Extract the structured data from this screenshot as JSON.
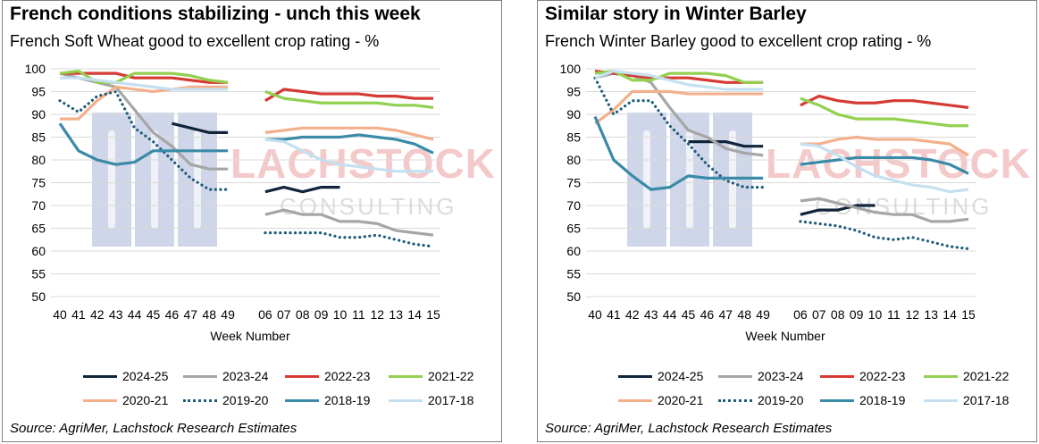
{
  "panels": [
    {
      "title": "French conditions stabilizing - unch this week",
      "subtitle": "French Soft Wheat good to excellent crop rating - %",
      "source": "Source: AgriMer, Lachstock Research Estimates",
      "watermark": {
        "text": "LACHSTOCK",
        "subtext": "CONSULTING"
      }
    },
    {
      "title": "Similar story in Winter Barley",
      "subtitle": "French Winter Barley good to excellent crop rating - %",
      "source": "Source: AgriMer, Lachstock Research Estimates",
      "watermark": {
        "text": "LACHSTOCK",
        "subtext": "CONSULTING"
      }
    }
  ],
  "colors": {
    "2024-25": "#10243a",
    "2023-24": "#a6a6a6",
    "2022-23": "#d63a34",
    "2021-22": "#92d050",
    "2020-21": "#f4b08c",
    "2019-20": "#1f5c7a",
    "2018-19": "#3a8aa8",
    "2017-18": "#c5e0f0"
  },
  "chart_data": [
    {
      "type": "line",
      "title": "French conditions stabilizing - unch this week",
      "subtitle": "French Soft Wheat good to excellent crop rating - %",
      "xlabel": "Week Number",
      "ylabel": "",
      "ylim": [
        50,
        100
      ],
      "yticks": [
        50,
        55,
        60,
        65,
        70,
        75,
        80,
        85,
        90,
        95,
        100
      ],
      "categories": [
        "40",
        "41",
        "42",
        "43",
        "44",
        "45",
        "46",
        "47",
        "48",
        "49",
        "",
        "06",
        "07",
        "08",
        "09",
        "10",
        "11",
        "12",
        "13",
        "14",
        "15"
      ],
      "legend_position": "bottom",
      "grid": "horizontal",
      "series": [
        {
          "name": "2024-25",
          "style": "solid",
          "values": [
            null,
            null,
            null,
            null,
            null,
            null,
            88,
            87,
            86,
            86,
            null,
            73,
            74,
            73,
            74,
            74,
            null,
            null,
            null,
            null,
            null
          ]
        },
        {
          "name": "2023-24",
          "style": "solid",
          "values": [
            99,
            98,
            97,
            96,
            91,
            86,
            83,
            79,
            78,
            78,
            null,
            68,
            69,
            68,
            68,
            66.5,
            66.5,
            66,
            64.5,
            64,
            63.5
          ]
        },
        {
          "name": "2022-23",
          "style": "solid",
          "values": [
            99,
            99,
            99,
            99,
            98,
            98,
            98,
            97.5,
            97,
            97,
            null,
            93,
            95.5,
            95,
            94.5,
            94.5,
            94.5,
            94,
            94,
            93.5,
            93.5
          ]
        },
        {
          "name": "2021-22",
          "style": "solid",
          "values": [
            99,
            99.5,
            97,
            97,
            99,
            99,
            99,
            98.5,
            97.5,
            97,
            null,
            95,
            93.5,
            93,
            92.5,
            92.5,
            92.5,
            92.5,
            92,
            92,
            91.5
          ]
        },
        {
          "name": "2020-21",
          "style": "solid",
          "values": [
            89,
            89,
            93,
            96,
            95.5,
            95,
            95.5,
            96,
            96,
            96,
            null,
            86,
            86.5,
            87,
            87,
            87,
            87,
            87,
            86.5,
            85.5,
            84.5
          ]
        },
        {
          "name": "2019-20",
          "style": "dotted",
          "values": [
            93,
            90.5,
            94,
            95,
            87,
            84,
            80,
            76,
            73.5,
            73.5,
            null,
            64,
            64,
            64,
            64,
            63,
            63,
            63.5,
            62.5,
            61.5,
            61
          ]
        },
        {
          "name": "2018-19",
          "style": "solid",
          "values": [
            88,
            82,
            80,
            79,
            79.5,
            82,
            82,
            82,
            82,
            82,
            null,
            84.5,
            84.5,
            85,
            85,
            85,
            85.5,
            85,
            84.5,
            83.5,
            81.5
          ]
        },
        {
          "name": "2017-18",
          "style": "solid",
          "values": [
            98,
            98,
            97.5,
            97,
            96.5,
            96,
            95.5,
            95.5,
            95.5,
            95.5,
            null,
            84.5,
            84,
            82,
            80,
            79,
            78.5,
            78,
            77.5,
            77.5,
            77.5
          ]
        }
      ],
      "legend": [
        "2024-25",
        "2023-24",
        "2022-23",
        "2021-22",
        "2020-21",
        "2019-20",
        "2018-19",
        "2017-18"
      ]
    },
    {
      "type": "line",
      "title": "Similar story in Winter Barley",
      "subtitle": "French Winter Barley good to excellent crop rating - %",
      "xlabel": "Week Number",
      "ylabel": "",
      "ylim": [
        50,
        100
      ],
      "yticks": [
        50,
        55,
        60,
        65,
        70,
        75,
        80,
        85,
        90,
        95,
        100
      ],
      "categories": [
        "40",
        "41",
        "42",
        "43",
        "44",
        "45",
        "46",
        "47",
        "48",
        "49",
        "",
        "06",
        "07",
        "08",
        "09",
        "10",
        "11",
        "12",
        "13",
        "14",
        "15"
      ],
      "legend_position": "bottom",
      "grid": "horizontal",
      "series": [
        {
          "name": "2024-25",
          "style": "solid",
          "values": [
            null,
            null,
            null,
            null,
            null,
            84,
            84,
            84,
            83,
            83,
            null,
            68,
            69,
            69,
            70,
            70,
            null,
            null,
            null,
            null,
            null
          ]
        },
        {
          "name": "2023-24",
          "style": "solid",
          "values": [
            98,
            99,
            98.5,
            97,
            91.5,
            86.5,
            85,
            82.5,
            81.5,
            81,
            null,
            71,
            71.5,
            70.5,
            69.5,
            68.5,
            68,
            68,
            66.5,
            66.5,
            67
          ]
        },
        {
          "name": "2022-23",
          "style": "solid",
          "values": [
            99.5,
            99,
            98.5,
            98,
            98,
            98,
            97.5,
            97,
            97,
            97,
            null,
            92,
            94,
            93,
            92.5,
            92.5,
            93,
            93,
            92.5,
            92,
            91.5
          ]
        },
        {
          "name": "2021-22",
          "style": "solid",
          "values": [
            99,
            99.5,
            97.5,
            97.5,
            99,
            99,
            99,
            98.5,
            97,
            97,
            null,
            93.5,
            92,
            90,
            89,
            89,
            89,
            88.5,
            88,
            87.5,
            87.5
          ]
        },
        {
          "name": "2020-21",
          "style": "solid",
          "values": [
            88,
            91,
            95,
            95,
            95,
            94.5,
            94.5,
            94.5,
            94.5,
            94.5,
            null,
            83.5,
            83.5,
            84.5,
            85,
            84.5,
            84.5,
            84.5,
            84,
            83.5,
            81
          ]
        },
        {
          "name": "2019-20",
          "style": "dotted",
          "values": [
            98,
            90,
            93,
            93,
            87.5,
            83.5,
            79,
            75.5,
            74,
            74,
            null,
            66.5,
            66,
            65.5,
            64.5,
            63,
            62.5,
            63,
            62,
            61,
            60.5
          ]
        },
        {
          "name": "2018-19",
          "style": "solid",
          "values": [
            89.5,
            80,
            76.5,
            73.5,
            74,
            76.5,
            76,
            76,
            76,
            76,
            null,
            79,
            79.5,
            80,
            80.5,
            80.5,
            80.5,
            80.5,
            80,
            79,
            77
          ]
        },
        {
          "name": "2017-18",
          "style": "solid",
          "values": [
            98,
            99.5,
            99,
            98.5,
            97.5,
            96.5,
            96,
            95.5,
            95.5,
            95.5,
            null,
            83.5,
            83,
            81,
            78.5,
            76.5,
            75.5,
            74.5,
            74,
            73,
            73.5
          ]
        }
      ],
      "legend": [
        "2024-25",
        "2023-24",
        "2022-23",
        "2021-22",
        "2020-21",
        "2019-20",
        "2018-19",
        "2017-18"
      ]
    }
  ]
}
